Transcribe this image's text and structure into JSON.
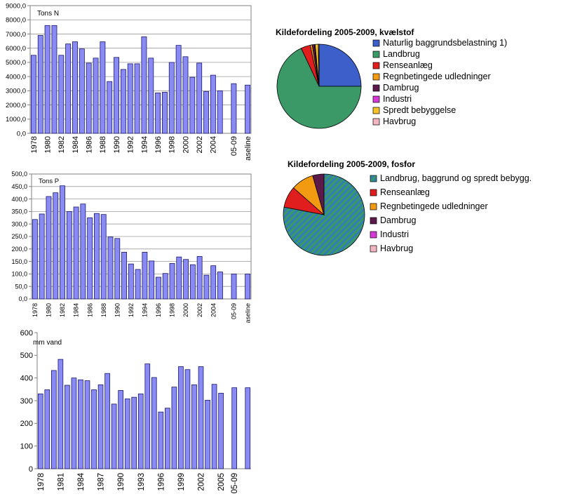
{
  "chart_data": [
    {
      "id": "nitrogen",
      "type": "bar",
      "ylabel": "Tons N",
      "ylim": [
        0,
        9000
      ],
      "yticks": [
        "0,0",
        "1000,0",
        "2000,0",
        "3000,0",
        "4000,0",
        "5000,0",
        "6000,0",
        "7000,0",
        "8000,0",
        "9000,0"
      ],
      "grid": true,
      "categories": [
        "1978",
        "1979",
        "1980",
        "1981",
        "1982",
        "1983",
        "1984",
        "1985",
        "1986",
        "1987",
        "1988",
        "1989",
        "1990",
        "1991",
        "1992",
        "1993",
        "1994",
        "1995",
        "1996",
        "1997",
        "1998",
        "1999",
        "2000",
        "2001",
        "2002",
        "2003",
        "2004",
        "2005",
        "",
        "05-09",
        "",
        "Baseline"
      ],
      "values": [
        5500,
        6900,
        7600,
        7600,
        5500,
        6300,
        6450,
        5950,
        4950,
        5300,
        6450,
        3650,
        5350,
        4500,
        4900,
        4900,
        6800,
        5300,
        2850,
        2900,
        5000,
        6200,
        5400,
        3950,
        4950,
        2950,
        4100,
        3000,
        null,
        3500,
        null,
        3400
      ],
      "xtick_labels": [
        "1978",
        "1980",
        "1982",
        "1984",
        "1986",
        "1988",
        "1990",
        "1992",
        "1994",
        "1996",
        "1998",
        "2000",
        "2002",
        "2004",
        "05-09",
        "aseline"
      ],
      "xtick_index": [
        0,
        2,
        4,
        6,
        8,
        10,
        12,
        14,
        16,
        18,
        20,
        22,
        24,
        26,
        29,
        31
      ]
    },
    {
      "id": "phosphorus",
      "type": "bar",
      "ylabel": "Tons P",
      "ylim": [
        0,
        500
      ],
      "yticks": [
        "0,0",
        "50,0",
        "100,0",
        "150,0",
        "200,0",
        "250,0",
        "300,0",
        "350,0",
        "400,0",
        "450,0",
        "500,0"
      ],
      "grid": true,
      "categories": [
        "1978",
        "1979",
        "1980",
        "1981",
        "1982",
        "1983",
        "1984",
        "1985",
        "1986",
        "1987",
        "1988",
        "1989",
        "1990",
        "1991",
        "1992",
        "1993",
        "1994",
        "1995",
        "1996",
        "1997",
        "1998",
        "1999",
        "2000",
        "2001",
        "2002",
        "2003",
        "2004",
        "2005",
        "",
        "05-09",
        "",
        "Baseline"
      ],
      "values": [
        318,
        340,
        410,
        425,
        453,
        350,
        368,
        380,
        325,
        342,
        338,
        248,
        242,
        187,
        140,
        118,
        187,
        152,
        87,
        102,
        142,
        168,
        158,
        137,
        170,
        95,
        133,
        108,
        null,
        100,
        null,
        100
      ],
      "xtick_labels": [
        "1978",
        "1980",
        "1982",
        "1984",
        "1986",
        "1988",
        "1990",
        "1992",
        "1994",
        "1996",
        "1998",
        "2000",
        "2002",
        "2004",
        "05-09",
        "aseline"
      ],
      "xtick_index": [
        0,
        2,
        4,
        6,
        8,
        10,
        12,
        14,
        16,
        18,
        20,
        22,
        24,
        26,
        29,
        31
      ]
    },
    {
      "id": "precipitation",
      "type": "bar",
      "ylabel": "mm vand",
      "ylim": [
        0,
        600
      ],
      "yticks": [
        "0",
        "100",
        "200",
        "300",
        "400",
        "500",
        "600"
      ],
      "grid": false,
      "categories": [
        "1978",
        "1979",
        "1980",
        "1981",
        "1982",
        "1983",
        "1984",
        "1985",
        "1986",
        "1987",
        "1988",
        "1989",
        "1990",
        "1991",
        "1992",
        "1993",
        "1994",
        "1995",
        "1996",
        "1997",
        "1998",
        "1999",
        "2000",
        "2001",
        "2002",
        "2003",
        "2004",
        "2005",
        "",
        "05-09",
        "",
        "Baseline"
      ],
      "values": [
        330,
        348,
        433,
        482,
        368,
        400,
        392,
        388,
        348,
        370,
        420,
        285,
        345,
        308,
        315,
        330,
        462,
        402,
        250,
        267,
        360,
        450,
        437,
        370,
        450,
        302,
        372,
        333,
        null,
        357,
        null,
        357
      ],
      "xtick_labels": [
        "1978",
        "1981",
        "1984",
        "1987",
        "1990",
        "1993",
        "1996",
        "1999",
        "2002",
        "2005",
        "05-09"
      ],
      "xtick_index": [
        0,
        3,
        6,
        9,
        12,
        15,
        18,
        21,
        24,
        27,
        29
      ]
    },
    {
      "id": "nitrogen-sources",
      "type": "pie",
      "title": "Kildefordeling 2005-2009, kvælstof",
      "slices": [
        {
          "label": "Naturlig baggrundsbelastning 1)",
          "value": 25,
          "color": "#3d5fc9"
        },
        {
          "label": "Landbrug",
          "value": 68,
          "color": "#3a9966"
        },
        {
          "label": "Renseanlæg",
          "value": 3.6,
          "color": "#e01e1e"
        },
        {
          "label": "Regnbetingede udledninger",
          "value": 0.8,
          "color": "#f29a12"
        },
        {
          "label": "Dambrug",
          "value": 0.8,
          "color": "#5c1a4a"
        },
        {
          "label": "Industri",
          "value": 0.3,
          "color": "#d63ad6"
        },
        {
          "label": "Spredt bebyggelse",
          "value": 1.2,
          "color": "#f5c22b"
        },
        {
          "label": "Havbrug",
          "value": 0.3,
          "color": "#f2b6c1"
        }
      ]
    },
    {
      "id": "phosphorus-sources",
      "type": "pie",
      "title": "Kildefordeling 2005-2009, fosfor",
      "slices": [
        {
          "label": "Landbrug, baggrund og spredt bebygg.",
          "value": 78,
          "color": "#3a9966",
          "pattern": "hatch-blue"
        },
        {
          "label": "Renseanlæg",
          "value": 8.5,
          "color": "#e01e1e"
        },
        {
          "label": "Regnbetingede udledninger",
          "value": 9,
          "color": "#f29a12"
        },
        {
          "label": "Dambrug",
          "value": 4.5,
          "color": "#5c1a4a"
        },
        {
          "label": "Industri",
          "value": 0,
          "color": "#d63ad6"
        },
        {
          "label": "Havbrug",
          "value": 0,
          "color": "#f2b6c1"
        }
      ]
    }
  ],
  "colors": {
    "bar_fill": "#8a8af5",
    "bar_stroke": "#1a1a6e",
    "axis": "#808080",
    "grid": "#9a9a9a",
    "text": "#000000"
  }
}
